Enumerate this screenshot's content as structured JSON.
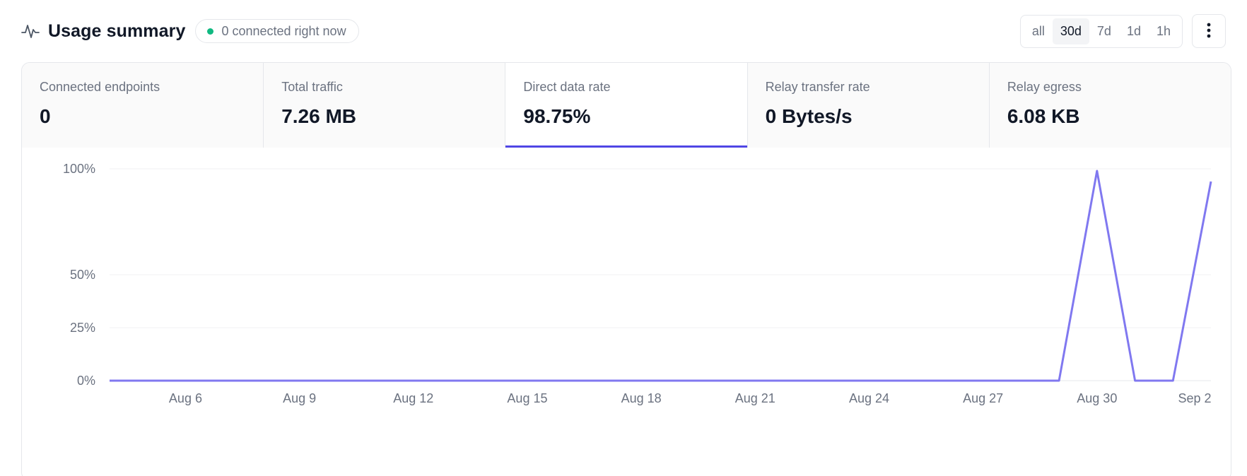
{
  "header": {
    "title": "Usage summary",
    "title_icon": "activity-icon",
    "status": {
      "text": "0 connected right now",
      "dot_color": "#10b981"
    }
  },
  "time_range": {
    "options": [
      "all",
      "30d",
      "7d",
      "1d",
      "1h"
    ],
    "selected": "30d"
  },
  "more_menu_icon": "vertical-dots-icon",
  "stats": [
    {
      "label": "Connected endpoints",
      "value": "0"
    },
    {
      "label": "Total traffic",
      "value": "7.26 MB"
    },
    {
      "label": "Direct data rate",
      "value": "98.75%",
      "active": true
    },
    {
      "label": "Relay transfer rate",
      "value": "0 Bytes/s"
    },
    {
      "label": "Relay egress",
      "value": "6.08 KB"
    }
  ],
  "colors": {
    "accent": "#4f46e5",
    "line": "#8078f0"
  },
  "chart_data": {
    "type": "line",
    "y_ticks": [
      {
        "value": 100,
        "label": "100%"
      },
      {
        "value": 50,
        "label": "50%"
      },
      {
        "value": 25,
        "label": "25%"
      },
      {
        "value": 0,
        "label": "0%"
      }
    ],
    "ylim": [
      0,
      100
    ],
    "x_ticks": [
      "Aug 6",
      "Aug 9",
      "Aug 12",
      "Aug 15",
      "Aug 18",
      "Aug 21",
      "Aug 24",
      "Aug 27",
      "Aug 30",
      "Sep 2"
    ],
    "series": [
      {
        "points": [
          {
            "x": "Aug 4",
            "y": 0
          },
          {
            "x": "Aug 29",
            "y": 0
          },
          {
            "x": "Aug 30",
            "y": 99
          },
          {
            "x": "Aug 31",
            "y": 0
          },
          {
            "x": "Sep 1",
            "y": 0
          },
          {
            "x": "Sep 2",
            "y": 94
          }
        ]
      }
    ]
  }
}
